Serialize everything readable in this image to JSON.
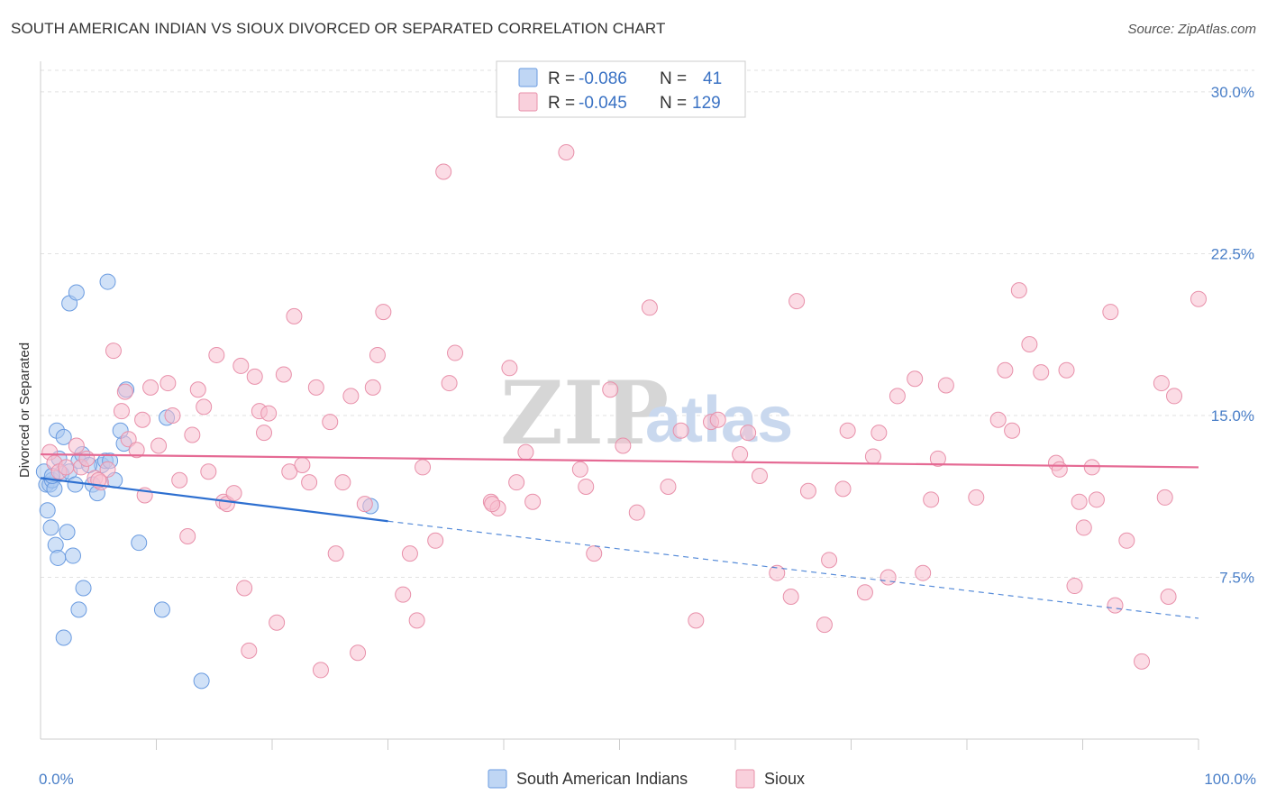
{
  "header": {
    "title": "SOUTH AMERICAN INDIAN VS SIOUX DIVORCED OR SEPARATED CORRELATION CHART",
    "source": "Source: ZipAtlas.com"
  },
  "watermark": {
    "zip": "ZIP",
    "atlas": "atlas"
  },
  "legend": {
    "r_label": "R =",
    "n_label": "N =",
    "items": [
      {
        "r": "-0.086",
        "n": "41",
        "color": "#a9c8f0",
        "stroke": "#6a9be0"
      },
      {
        "r": "-0.045",
        "n": "129",
        "color": "#f7c0d0",
        "stroke": "#e890aa"
      }
    ]
  },
  "bottom_legend": [
    {
      "label": "South American Indians",
      "color": "#a9c8f0",
      "stroke": "#6a9be0"
    },
    {
      "label": "Sioux",
      "color": "#f7c0d0",
      "stroke": "#e890aa"
    }
  ],
  "chart_data": {
    "type": "scatter",
    "title": "SOUTH AMERICAN INDIAN VS SIOUX DIVORCED OR SEPARATED CORRELATION CHART",
    "ylabel": "Divorced or Separated",
    "xlabel": "",
    "xlim": [
      0,
      100
    ],
    "ylim": [
      0,
      31
    ],
    "x_tick_labels": [
      "0.0%",
      "100.0%"
    ],
    "y_ticks": [
      7.5,
      15.0,
      22.5,
      30.0
    ],
    "y_tick_labels": [
      "7.5%",
      "15.0%",
      "22.5%",
      "30.0%"
    ],
    "grid": true,
    "series": [
      {
        "name": "South American Indians",
        "color": "#6a9be0",
        "fill": "#a9c8f0",
        "trend": {
          "x": [
            0,
            30
          ],
          "y": [
            12.1,
            10.1
          ],
          "dash_x": [
            30,
            100
          ],
          "dash_y": [
            10.1,
            5.6
          ],
          "color": "#2d6fd0"
        },
        "points": [
          [
            0.3,
            12.4
          ],
          [
            0.5,
            11.8
          ],
          [
            0.8,
            11.8
          ],
          [
            1.0,
            12.0
          ],
          [
            0.6,
            10.6
          ],
          [
            0.9,
            9.8
          ],
          [
            1.2,
            11.6
          ],
          [
            1.4,
            14.3
          ],
          [
            1.6,
            13.0
          ],
          [
            1.8,
            12.3
          ],
          [
            2.0,
            14.0
          ],
          [
            1.3,
            9.0
          ],
          [
            1.5,
            8.4
          ],
          [
            2.3,
            9.6
          ],
          [
            2.5,
            12.4
          ],
          [
            2.8,
            8.5
          ],
          [
            3.0,
            11.8
          ],
          [
            3.3,
            12.9
          ],
          [
            3.6,
            13.2
          ],
          [
            2.5,
            20.2
          ],
          [
            3.1,
            20.7
          ],
          [
            4.5,
            11.8
          ],
          [
            4.9,
            11.4
          ],
          [
            5.3,
            12.7
          ],
          [
            5.6,
            12.9
          ],
          [
            6.4,
            12.0
          ],
          [
            7.2,
            13.7
          ],
          [
            6.9,
            14.3
          ],
          [
            7.4,
            16.2
          ],
          [
            8.5,
            9.1
          ],
          [
            3.3,
            6.0
          ],
          [
            3.7,
            7.0
          ],
          [
            2.0,
            4.7
          ],
          [
            5.8,
            21.2
          ],
          [
            10.9,
            14.9
          ],
          [
            10.5,
            6.0
          ],
          [
            13.9,
            2.7
          ],
          [
            28.5,
            10.8
          ],
          [
            4.2,
            12.7
          ],
          [
            1.0,
            12.2
          ],
          [
            6.0,
            12.9
          ]
        ]
      },
      {
        "name": "Sioux",
        "color": "#e890aa",
        "fill": "#f7c0d0",
        "trend": {
          "x": [
            0,
            100
          ],
          "y": [
            13.2,
            12.6
          ],
          "color": "#e56a94"
        },
        "points": [
          [
            0.8,
            13.3
          ],
          [
            1.2,
            12.8
          ],
          [
            1.6,
            12.4
          ],
          [
            2.2,
            12.6
          ],
          [
            3.1,
            13.6
          ],
          [
            3.5,
            12.6
          ],
          [
            4.0,
            13.0
          ],
          [
            4.7,
            12.1
          ],
          [
            5.2,
            11.9
          ],
          [
            5.8,
            12.5
          ],
          [
            6.3,
            18.0
          ],
          [
            7.0,
            15.2
          ],
          [
            7.3,
            16.1
          ],
          [
            7.6,
            13.9
          ],
          [
            8.3,
            13.4
          ],
          [
            8.8,
            14.8
          ],
          [
            9.5,
            16.3
          ],
          [
            10.2,
            13.6
          ],
          [
            11.0,
            16.5
          ],
          [
            11.4,
            15.0
          ],
          [
            12.0,
            12.0
          ],
          [
            12.7,
            9.4
          ],
          [
            13.1,
            14.1
          ],
          [
            13.6,
            16.2
          ],
          [
            14.1,
            15.4
          ],
          [
            14.5,
            12.4
          ],
          [
            15.2,
            17.8
          ],
          [
            15.8,
            11.0
          ],
          [
            16.1,
            10.9
          ],
          [
            16.7,
            11.4
          ],
          [
            17.3,
            17.3
          ],
          [
            17.6,
            7.0
          ],
          [
            18.0,
            4.1
          ],
          [
            18.5,
            16.8
          ],
          [
            18.9,
            15.2
          ],
          [
            19.3,
            14.2
          ],
          [
            19.7,
            15.1
          ],
          [
            20.4,
            5.4
          ],
          [
            21.0,
            16.9
          ],
          [
            21.5,
            12.4
          ],
          [
            21.9,
            19.6
          ],
          [
            22.6,
            12.7
          ],
          [
            23.2,
            11.9
          ],
          [
            23.8,
            16.3
          ],
          [
            24.2,
            3.2
          ],
          [
            25.0,
            14.7
          ],
          [
            25.5,
            8.6
          ],
          [
            26.1,
            11.9
          ],
          [
            26.8,
            15.9
          ],
          [
            27.4,
            4.0
          ],
          [
            28.0,
            10.9
          ],
          [
            28.7,
            16.3
          ],
          [
            29.1,
            17.8
          ],
          [
            29.6,
            19.8
          ],
          [
            31.3,
            6.7
          ],
          [
            31.9,
            8.6
          ],
          [
            32.5,
            5.5
          ],
          [
            33.0,
            12.6
          ],
          [
            34.1,
            9.2
          ],
          [
            34.8,
            26.3
          ],
          [
            35.3,
            16.5
          ],
          [
            35.8,
            17.9
          ],
          [
            38.9,
            11.0
          ],
          [
            39.5,
            10.7
          ],
          [
            40.5,
            17.2
          ],
          [
            41.1,
            11.9
          ],
          [
            41.9,
            13.3
          ],
          [
            42.5,
            11.0
          ],
          [
            45.4,
            27.2
          ],
          [
            46.6,
            12.5
          ],
          [
            47.1,
            11.7
          ],
          [
            47.8,
            8.6
          ],
          [
            49.2,
            16.2
          ],
          [
            50.3,
            13.6
          ],
          [
            51.5,
            10.5
          ],
          [
            52.6,
            20.0
          ],
          [
            54.2,
            11.7
          ],
          [
            55.3,
            14.3
          ],
          [
            56.6,
            5.5
          ],
          [
            57.9,
            14.7
          ],
          [
            58.5,
            14.8
          ],
          [
            60.4,
            13.2
          ],
          [
            61.1,
            14.2
          ],
          [
            62.1,
            12.2
          ],
          [
            63.6,
            7.7
          ],
          [
            64.8,
            6.6
          ],
          [
            65.3,
            20.3
          ],
          [
            66.3,
            11.5
          ],
          [
            67.7,
            5.3
          ],
          [
            68.1,
            8.3
          ],
          [
            69.3,
            11.6
          ],
          [
            69.7,
            14.3
          ],
          [
            71.2,
            6.8
          ],
          [
            71.9,
            13.1
          ],
          [
            72.4,
            14.2
          ],
          [
            73.2,
            7.5
          ],
          [
            74.0,
            15.9
          ],
          [
            75.5,
            16.7
          ],
          [
            76.2,
            7.7
          ],
          [
            76.9,
            11.1
          ],
          [
            77.5,
            13.0
          ],
          [
            78.2,
            16.4
          ],
          [
            80.8,
            11.2
          ],
          [
            82.7,
            14.8
          ],
          [
            83.3,
            17.1
          ],
          [
            83.9,
            14.3
          ],
          [
            84.5,
            20.8
          ],
          [
            85.4,
            18.3
          ],
          [
            86.4,
            17.0
          ],
          [
            87.7,
            12.8
          ],
          [
            88.0,
            12.5
          ],
          [
            88.6,
            17.1
          ],
          [
            89.3,
            7.1
          ],
          [
            89.7,
            11.0
          ],
          [
            90.1,
            9.8
          ],
          [
            90.8,
            12.6
          ],
          [
            91.2,
            11.1
          ],
          [
            92.4,
            19.8
          ],
          [
            92.8,
            6.2
          ],
          [
            93.8,
            9.2
          ],
          [
            95.1,
            3.6
          ],
          [
            96.8,
            16.5
          ],
          [
            97.1,
            11.2
          ],
          [
            97.4,
            6.6
          ],
          [
            97.9,
            15.9
          ],
          [
            100.0,
            20.4
          ],
          [
            5.0,
            12.0
          ],
          [
            9.0,
            11.3
          ],
          [
            39.0,
            10.9
          ]
        ]
      }
    ]
  }
}
